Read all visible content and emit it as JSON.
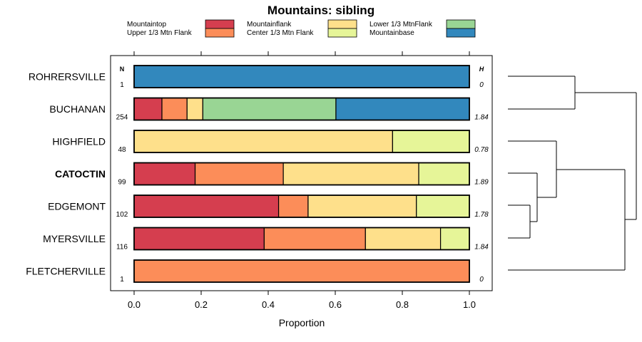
{
  "chart_data": {
    "type": "bar",
    "orientation": "horizontal",
    "stacked": true,
    "title": "Mountains: sibling",
    "xlabel": "Proportion",
    "xlim": [
      0,
      1
    ],
    "xticks": [
      "0.0",
      "0.2",
      "0.4",
      "0.6",
      "0.8",
      "1.0"
    ],
    "col_header_n": "N",
    "col_header_h": "H",
    "highlighted_category": "CATOCTIN",
    "legend": [
      {
        "label": "Mountaintop",
        "color": "#d53e4f"
      },
      {
        "label": "Upper 1/3 Mtn Flank",
        "color": "#fc8d59"
      },
      {
        "label": "Mountainflank",
        "color": "#fee08b"
      },
      {
        "label": "Center 1/3 Mtn Flank",
        "color": "#e6f598"
      },
      {
        "label": "Lower 1/3 MtnFlank",
        "color": "#99d594"
      },
      {
        "label": "Mountainbase",
        "color": "#3288bd"
      }
    ],
    "rows": [
      {
        "name": "ROHRERSVILLE",
        "n": "1",
        "h": "0",
        "segments": [
          {
            "series": "Mountainbase",
            "value": 1.0
          }
        ]
      },
      {
        "name": "BUCHANAN",
        "n": "254",
        "h": "1.84",
        "segments": [
          {
            "series": "Mountaintop",
            "value": 0.083
          },
          {
            "series": "Upper 1/3 Mtn Flank",
            "value": 0.075
          },
          {
            "series": "Mountainflank",
            "value": 0.047
          },
          {
            "series": "Lower 1/3 MtnFlank",
            "value": 0.397
          },
          {
            "series": "Mountainbase",
            "value": 0.398
          }
        ]
      },
      {
        "name": "HIGHFIELD",
        "n": "48",
        "h": "0.78",
        "segments": [
          {
            "series": "Mountainflank",
            "value": 0.771
          },
          {
            "series": "Center 1/3 Mtn Flank",
            "value": 0.229
          }
        ]
      },
      {
        "name": "CATOCTIN",
        "n": "99",
        "h": "1.89",
        "segments": [
          {
            "series": "Mountaintop",
            "value": 0.182
          },
          {
            "series": "Upper 1/3 Mtn Flank",
            "value": 0.263
          },
          {
            "series": "Mountainflank",
            "value": 0.404
          },
          {
            "series": "Center 1/3 Mtn Flank",
            "value": 0.151
          }
        ]
      },
      {
        "name": "EDGEMONT",
        "n": "102",
        "h": "1.78",
        "segments": [
          {
            "series": "Mountaintop",
            "value": 0.431
          },
          {
            "series": "Upper 1/3 Mtn Flank",
            "value": 0.088
          },
          {
            "series": "Mountainflank",
            "value": 0.323
          },
          {
            "series": "Center 1/3 Mtn Flank",
            "value": 0.158
          }
        ]
      },
      {
        "name": "MYERSVILLE",
        "n": "116",
        "h": "1.84",
        "segments": [
          {
            "series": "Mountaintop",
            "value": 0.388
          },
          {
            "series": "Upper 1/3 Mtn Flank",
            "value": 0.302
          },
          {
            "series": "Mountainflank",
            "value": 0.224
          },
          {
            "series": "Center 1/3 Mtn Flank",
            "value": 0.086
          }
        ]
      },
      {
        "name": "FLETCHERVILLE",
        "n": "1",
        "h": "0",
        "segments": [
          {
            "series": "Upper 1/3 Mtn Flank",
            "value": 1.0
          }
        ]
      }
    ]
  }
}
